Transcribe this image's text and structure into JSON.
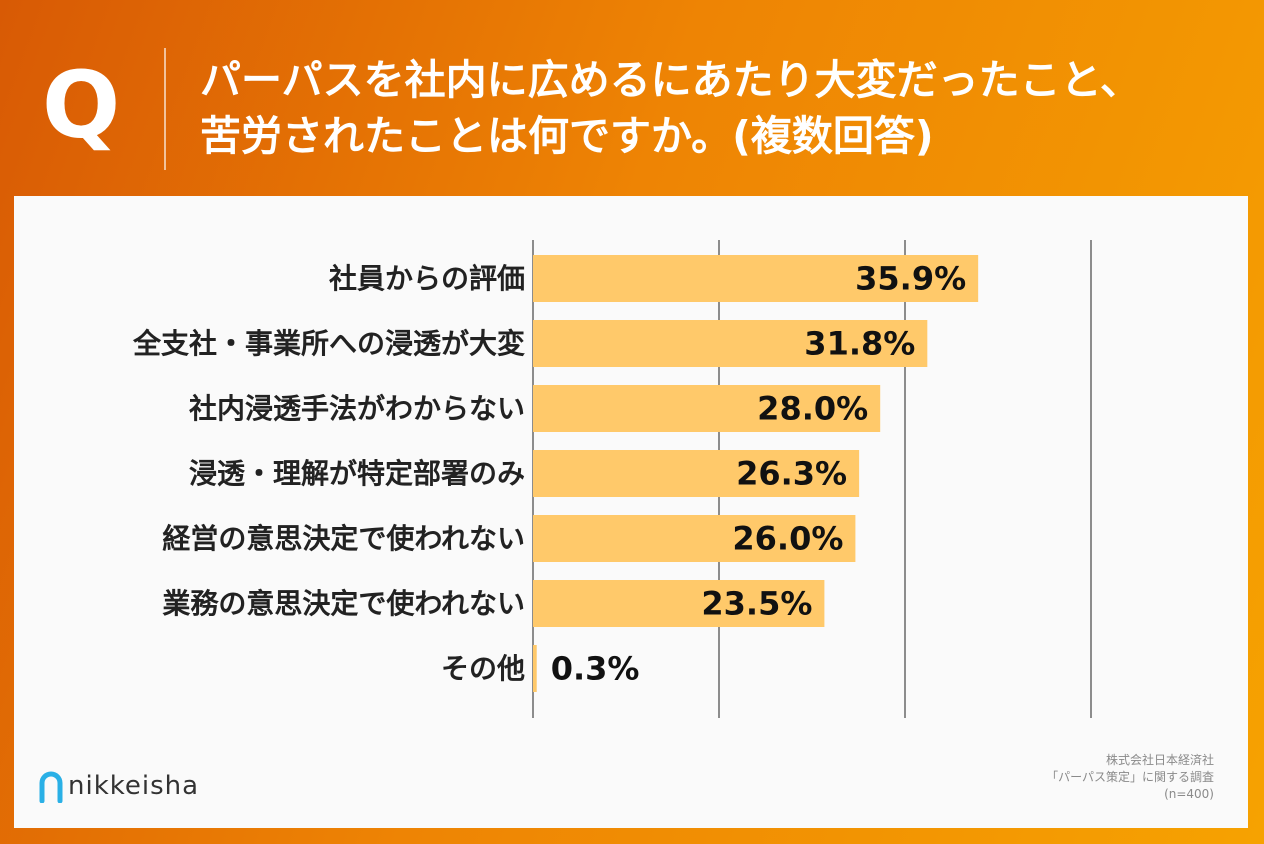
{
  "header": {
    "q_label": "Q",
    "question_lines": [
      "パーパスを社内に広めるにあたり大変だったこと、",
      "苦労されたことは何ですか。(複数回答)"
    ]
  },
  "chart_data": {
    "type": "bar",
    "orientation": "horizontal",
    "categories": [
      "社員からの評価",
      "全支社・事業所への浸透が大変",
      "社内浸透手法がわからない",
      "浸透・理解が特定部署のみ",
      "経営の意思決定で使われない",
      "業務の意思決定で使われない",
      "その他"
    ],
    "values": [
      35.9,
      31.8,
      28.0,
      26.3,
      26.0,
      23.5,
      0.3
    ],
    "value_labels": [
      "35.9%",
      "31.8%",
      "28.0%",
      "26.3%",
      "26.0%",
      "23.5%",
      "0.3%"
    ],
    "xlim": [
      0,
      45
    ],
    "grid_at": [
      0,
      15,
      30,
      45
    ],
    "grid": true,
    "bar_color": "#ffc96a",
    "grid_color": "#8c8c8c"
  },
  "brand": {
    "logo_text": "nikkeisha",
    "logo_color": "#2ab0e6"
  },
  "source": {
    "lines": [
      "株式会社日本経済社",
      "「パーパス策定」に関する調査",
      "(n=400)"
    ]
  }
}
